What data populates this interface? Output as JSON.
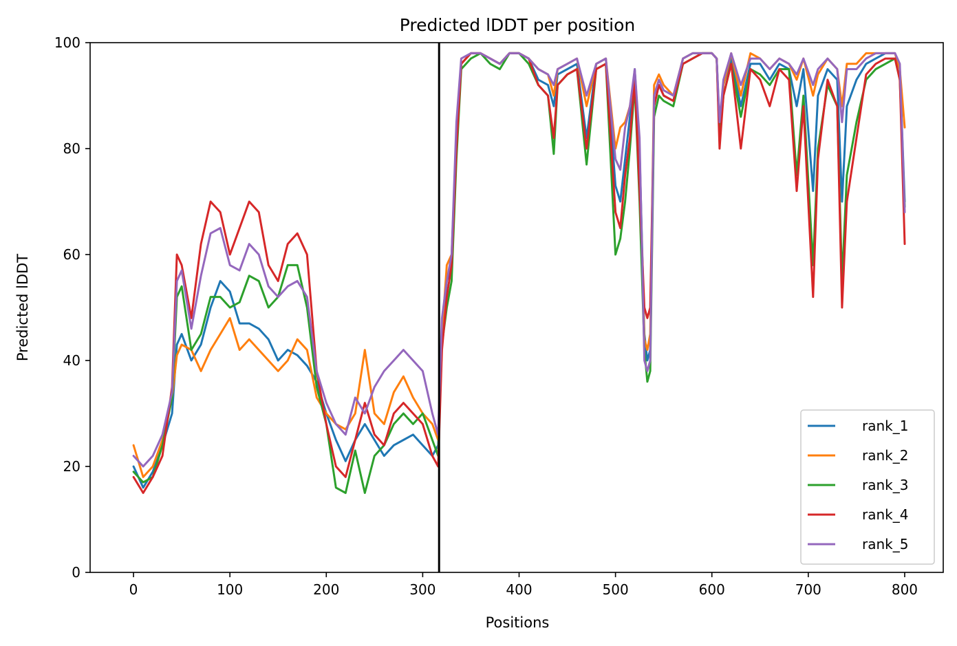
{
  "chart_data": {
    "type": "line",
    "title": "Predicted lDDT per position",
    "xlabel": "Positions",
    "ylabel": "Predicted lDDT",
    "xlim": [
      -45,
      840
    ],
    "ylim": [
      0,
      100
    ],
    "xticks": [
      0,
      100,
      200,
      300,
      400,
      500,
      600,
      700,
      800
    ],
    "yticks": [
      0,
      20,
      40,
      60,
      80,
      100
    ],
    "grid": false,
    "legend_position": "bottom-right",
    "vline": 317,
    "vline_color": "#000000",
    "series": [
      {
        "name": "rank_1",
        "color": "#1f77b4",
        "x": [
          0,
          10,
          20,
          30,
          40,
          45,
          50,
          60,
          70,
          80,
          90,
          100,
          110,
          120,
          130,
          140,
          150,
          160,
          170,
          180,
          190,
          200,
          210,
          220,
          230,
          240,
          250,
          260,
          270,
          280,
          290,
          300,
          310,
          316,
          320,
          325,
          330,
          335,
          340,
          350,
          360,
          370,
          380,
          390,
          400,
          410,
          420,
          430,
          436,
          440,
          450,
          460,
          470,
          480,
          490,
          500,
          505,
          510,
          515,
          520,
          525,
          530,
          533,
          536,
          540,
          545,
          550,
          560,
          570,
          580,
          590,
          600,
          605,
          608,
          612,
          620,
          630,
          640,
          650,
          660,
          670,
          680,
          688,
          695,
          705,
          710,
          720,
          730,
          735,
          740,
          750,
          760,
          770,
          780,
          790,
          795,
          800
        ],
        "y": [
          20,
          16,
          19,
          24,
          30,
          43,
          45,
          40,
          43,
          50,
          55,
          53,
          47,
          47,
          46,
          44,
          40,
          42,
          41,
          39,
          36,
          30,
          25,
          21,
          25,
          28,
          25,
          22,
          24,
          25,
          26,
          24,
          22,
          24,
          45,
          55,
          58,
          80,
          96,
          98,
          98,
          97,
          96,
          98,
          98,
          97,
          93,
          92,
          88,
          94,
          95,
          96,
          82,
          96,
          97,
          73,
          70,
          78,
          86,
          95,
          80,
          45,
          40,
          42,
          88,
          92,
          90,
          89,
          97,
          98,
          98,
          98,
          97,
          84,
          92,
          97,
          88,
          96,
          96,
          93,
          96,
          95,
          88,
          95,
          72,
          90,
          95,
          93,
          70,
          88,
          93,
          96,
          97,
          98,
          98,
          95,
          70
        ]
      },
      {
        "name": "rank_2",
        "color": "#ff7f0e",
        "x": [
          0,
          10,
          20,
          30,
          40,
          45,
          50,
          60,
          70,
          80,
          90,
          100,
          110,
          120,
          130,
          140,
          150,
          160,
          170,
          180,
          190,
          200,
          210,
          220,
          230,
          240,
          250,
          260,
          270,
          280,
          290,
          300,
          310,
          316,
          320,
          325,
          330,
          335,
          340,
          350,
          360,
          370,
          380,
          390,
          400,
          410,
          420,
          430,
          436,
          440,
          450,
          460,
          470,
          480,
          490,
          500,
          505,
          510,
          515,
          520,
          525,
          530,
          533,
          536,
          540,
          545,
          550,
          560,
          570,
          580,
          590,
          600,
          605,
          608,
          612,
          620,
          630,
          640,
          650,
          660,
          670,
          680,
          688,
          695,
          705,
          710,
          720,
          730,
          735,
          740,
          750,
          760,
          770,
          780,
          790,
          795,
          800
        ],
        "y": [
          24,
          18,
          20,
          25,
          33,
          41,
          43,
          42,
          38,
          42,
          45,
          48,
          42,
          44,
          42,
          40,
          38,
          40,
          44,
          42,
          33,
          30,
          28,
          27,
          30,
          42,
          30,
          28,
          34,
          37,
          33,
          30,
          28,
          25,
          45,
          58,
          60,
          82,
          96,
          98,
          98,
          97,
          96,
          98,
          98,
          97,
          95,
          94,
          90,
          95,
          96,
          97,
          88,
          96,
          97,
          80,
          84,
          85,
          88,
          94,
          78,
          44,
          42,
          45,
          92,
          94,
          92,
          90,
          97,
          98,
          98,
          98,
          97,
          82,
          92,
          98,
          90,
          98,
          97,
          95,
          97,
          96,
          93,
          97,
          90,
          94,
          97,
          95,
          88,
          96,
          96,
          98,
          98,
          98,
          98,
          95,
          84
        ]
      },
      {
        "name": "rank_3",
        "color": "#2ca02c",
        "x": [
          0,
          10,
          20,
          30,
          40,
          45,
          50,
          60,
          70,
          80,
          90,
          100,
          110,
          120,
          130,
          140,
          150,
          160,
          170,
          180,
          190,
          200,
          210,
          220,
          230,
          240,
          250,
          260,
          270,
          280,
          290,
          300,
          310,
          316,
          320,
          325,
          330,
          335,
          340,
          350,
          360,
          370,
          380,
          390,
          400,
          410,
          420,
          430,
          436,
          440,
          450,
          460,
          470,
          480,
          490,
          500,
          505,
          510,
          515,
          520,
          525,
          530,
          533,
          536,
          540,
          545,
          550,
          560,
          570,
          580,
          590,
          600,
          605,
          608,
          612,
          620,
          630,
          640,
          650,
          660,
          670,
          680,
          688,
          695,
          705,
          710,
          720,
          730,
          735,
          740,
          750,
          760,
          770,
          780,
          790,
          795,
          800
        ],
        "y": [
          19,
          17,
          18,
          24,
          33,
          52,
          54,
          42,
          45,
          52,
          52,
          50,
          51,
          56,
          55,
          50,
          52,
          58,
          58,
          50,
          35,
          28,
          16,
          15,
          23,
          15,
          22,
          24,
          28,
          30,
          28,
          30,
          25,
          22,
          43,
          50,
          55,
          78,
          95,
          97,
          98,
          96,
          95,
          98,
          98,
          96,
          92,
          90,
          79,
          92,
          94,
          95,
          77,
          95,
          96,
          60,
          63,
          70,
          80,
          92,
          70,
          42,
          36,
          38,
          86,
          90,
          89,
          88,
          96,
          97,
          98,
          98,
          97,
          82,
          90,
          96,
          86,
          95,
          94,
          92,
          95,
          95,
          75,
          90,
          58,
          80,
          92,
          88,
          55,
          75,
          85,
          93,
          95,
          96,
          97,
          93,
          69
        ]
      },
      {
        "name": "rank_4",
        "color": "#d62728",
        "x": [
          0,
          10,
          20,
          30,
          40,
          45,
          50,
          60,
          70,
          80,
          90,
          100,
          110,
          120,
          130,
          140,
          150,
          160,
          170,
          180,
          190,
          200,
          210,
          220,
          230,
          240,
          250,
          260,
          270,
          280,
          290,
          300,
          310,
          316,
          320,
          325,
          330,
          335,
          340,
          350,
          360,
          370,
          380,
          390,
          400,
          410,
          420,
          430,
          436,
          440,
          450,
          460,
          470,
          480,
          490,
          500,
          505,
          510,
          515,
          520,
          525,
          530,
          533,
          536,
          540,
          545,
          550,
          560,
          570,
          580,
          590,
          600,
          605,
          608,
          612,
          620,
          630,
          640,
          650,
          660,
          670,
          680,
          688,
          695,
          705,
          710,
          720,
          730,
          735,
          740,
          750,
          760,
          770,
          780,
          790,
          795,
          800
        ],
        "y": [
          18,
          15,
          18,
          22,
          35,
          60,
          58,
          48,
          62,
          70,
          68,
          60,
          65,
          70,
          68,
          58,
          55,
          62,
          64,
          60,
          38,
          28,
          20,
          18,
          25,
          32,
          26,
          24,
          30,
          32,
          30,
          28,
          22,
          20,
          42,
          52,
          58,
          80,
          96,
          98,
          98,
          97,
          96,
          98,
          98,
          97,
          92,
          90,
          82,
          92,
          94,
          95,
          80,
          95,
          96,
          68,
          65,
          75,
          82,
          93,
          72,
          50,
          48,
          50,
          88,
          92,
          90,
          89,
          96,
          97,
          98,
          98,
          97,
          80,
          90,
          96,
          80,
          95,
          93,
          88,
          95,
          93,
          72,
          88,
          52,
          78,
          93,
          88,
          50,
          70,
          82,
          94,
          96,
          97,
          97,
          93,
          62
        ]
      },
      {
        "name": "rank_5",
        "color": "#9467bd",
        "x": [
          0,
          10,
          20,
          30,
          40,
          45,
          50,
          60,
          70,
          80,
          90,
          100,
          110,
          120,
          130,
          140,
          150,
          160,
          170,
          180,
          190,
          200,
          210,
          220,
          230,
          240,
          250,
          260,
          270,
          280,
          290,
          300,
          310,
          316,
          320,
          325,
          330,
          335,
          340,
          350,
          360,
          370,
          380,
          390,
          400,
          410,
          420,
          430,
          436,
          440,
          450,
          460,
          470,
          480,
          490,
          500,
          505,
          510,
          515,
          520,
          525,
          530,
          533,
          536,
          540,
          545,
          550,
          560,
          570,
          580,
          590,
          600,
          605,
          608,
          612,
          620,
          630,
          640,
          650,
          660,
          670,
          680,
          688,
          695,
          705,
          710,
          720,
          730,
          735,
          740,
          750,
          760,
          770,
          780,
          790,
          795,
          800
        ],
        "y": [
          22,
          20,
          22,
          26,
          34,
          55,
          57,
          46,
          56,
          64,
          65,
          58,
          57,
          62,
          60,
          54,
          52,
          54,
          55,
          52,
          38,
          32,
          28,
          26,
          33,
          30,
          35,
          38,
          40,
          42,
          40,
          38,
          30,
          26,
          48,
          55,
          60,
          85,
          97,
          98,
          98,
          97,
          96,
          98,
          98,
          97,
          95,
          94,
          92,
          95,
          96,
          97,
          90,
          96,
          97,
          78,
          76,
          84,
          88,
          95,
          82,
          40,
          38,
          40,
          90,
          93,
          91,
          90,
          97,
          98,
          98,
          98,
          97,
          85,
          93,
          98,
          92,
          97,
          97,
          95,
          97,
          96,
          94,
          97,
          92,
          95,
          97,
          95,
          85,
          95,
          95,
          97,
          98,
          98,
          98,
          96,
          68
        ]
      }
    ]
  }
}
